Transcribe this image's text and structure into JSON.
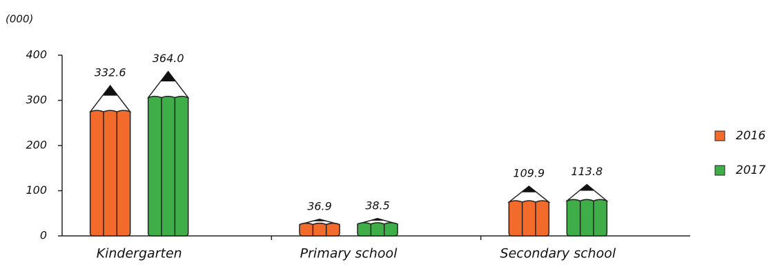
{
  "chart_data": {
    "type": "bar",
    "unit_label": "(000)",
    "categories": [
      "Kindergarten",
      "Primary school",
      "Secondary school"
    ],
    "series": [
      {
        "name": "2016",
        "color": "#f26b2b",
        "values": [
          332.6,
          36.9,
          109.9
        ],
        "value_labels": [
          "332.6",
          "36.9",
          "109.9"
        ]
      },
      {
        "name": "2017",
        "color": "#3fae49",
        "values": [
          364.0,
          38.5,
          113.8
        ],
        "value_labels": [
          "364.0",
          "38.5",
          "113.8"
        ]
      }
    ],
    "ylim": [
      0,
      400
    ],
    "yticks": [
      0,
      100,
      200,
      300,
      400
    ],
    "legend": "right"
  }
}
